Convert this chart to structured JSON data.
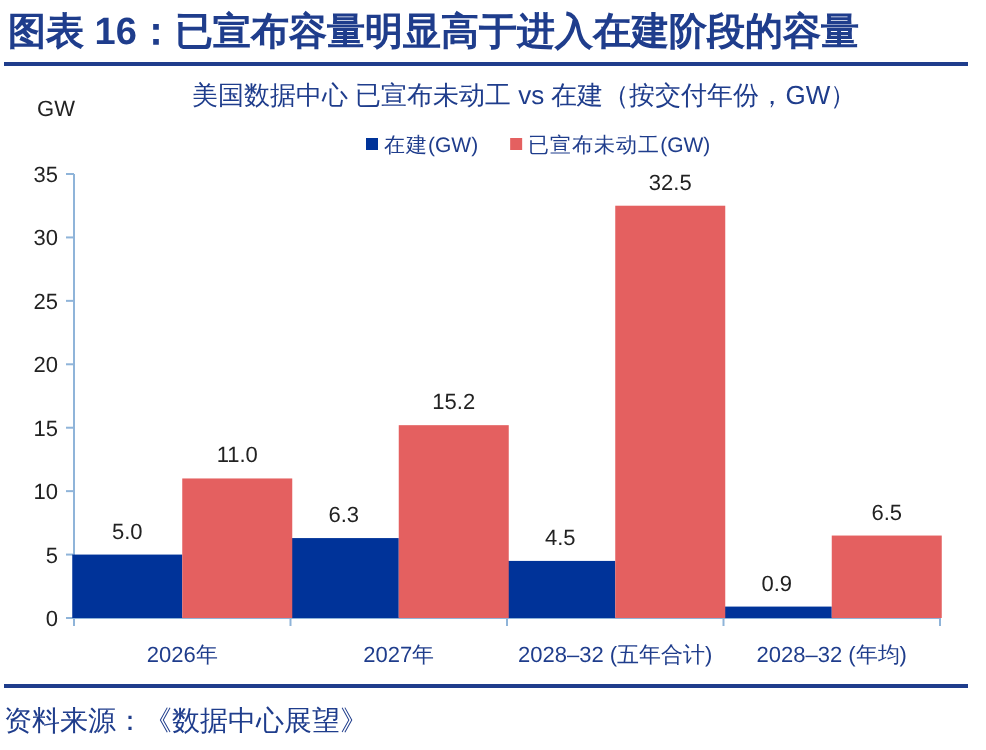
{
  "chart_data": {
    "type": "bar",
    "title": "图表 16：已宣布容量明显高于进入在建阶段的容量",
    "subtitle": "美国数据中心 已宣布未动工 vs 在建（按交付年份，GW）",
    "ylabel": "GW",
    "categories": [
      "2026年",
      "2027年",
      "2028–32 (五年合计)",
      "2028–32 (年均)"
    ],
    "series": [
      {
        "name": "在建(GW)",
        "color": "#003399",
        "values": [
          5.0,
          6.3,
          4.5,
          0.9
        ],
        "value_labels": [
          "5.0",
          "6.3",
          "4.5",
          "0.9"
        ]
      },
      {
        "name": "已宣布未动工(GW)",
        "color": "#e46060",
        "values": [
          11.0,
          15.2,
          32.5,
          6.5
        ],
        "value_labels": [
          "11.0",
          "15.2",
          "32.5",
          "6.5"
        ]
      }
    ],
    "ylim": [
      0,
      35
    ],
    "yticks": [
      0,
      5,
      10,
      15,
      20,
      25,
      30,
      35
    ],
    "legend": "top",
    "annotations": [
      "资料来源：《数据中心展望》"
    ]
  }
}
